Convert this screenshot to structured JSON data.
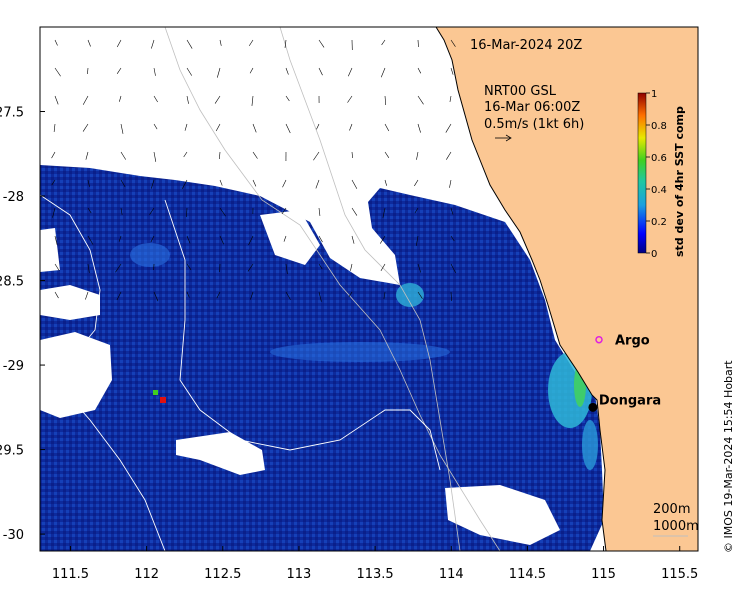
{
  "header": {
    "date_label": "16-Mar-2024 20Z"
  },
  "current_legend": {
    "line1": "NRT00 GSL",
    "line2": "16-Mar 06:00Z",
    "line3": "0.5m/s (1kt 6h)"
  },
  "colorbar": {
    "title": "std dev of 4hr SST comp",
    "ticks": [
      "0",
      "0.2",
      "0.4",
      "0.6",
      "0.8",
      "1"
    ],
    "range": [
      0,
      1
    ]
  },
  "places": [
    {
      "name": "Argo",
      "lon": 114.97,
      "lat": -28.85,
      "marker": "ring",
      "color": "#e020e0"
    },
    {
      "name": "Dongara",
      "lon": 114.93,
      "lat": -29.25,
      "marker": "dot",
      "color": "#000000"
    }
  ],
  "contours": {
    "line1": "200m",
    "line2": "1000m"
  },
  "credit": "© IMOS 19-Mar-2024 15:54 Hobart",
  "axes": {
    "x_ticks": [
      "111.5",
      "112",
      "112.5",
      "113",
      "113.5",
      "114",
      "114.5",
      "115",
      "115.5"
    ],
    "y_ticks": [
      "-27.5",
      "-28",
      "-28.5",
      "-29",
      "-29.5",
      "-30"
    ],
    "lon_range": [
      111.3,
      115.62
    ],
    "lat_range": [
      -30.1,
      -27.0
    ]
  },
  "colors": {
    "land": "#fbc793",
    "sst_low": "#0a1a8c",
    "sst_mid": "#1b5ed8",
    "sst_high": "#38c6d6"
  }
}
